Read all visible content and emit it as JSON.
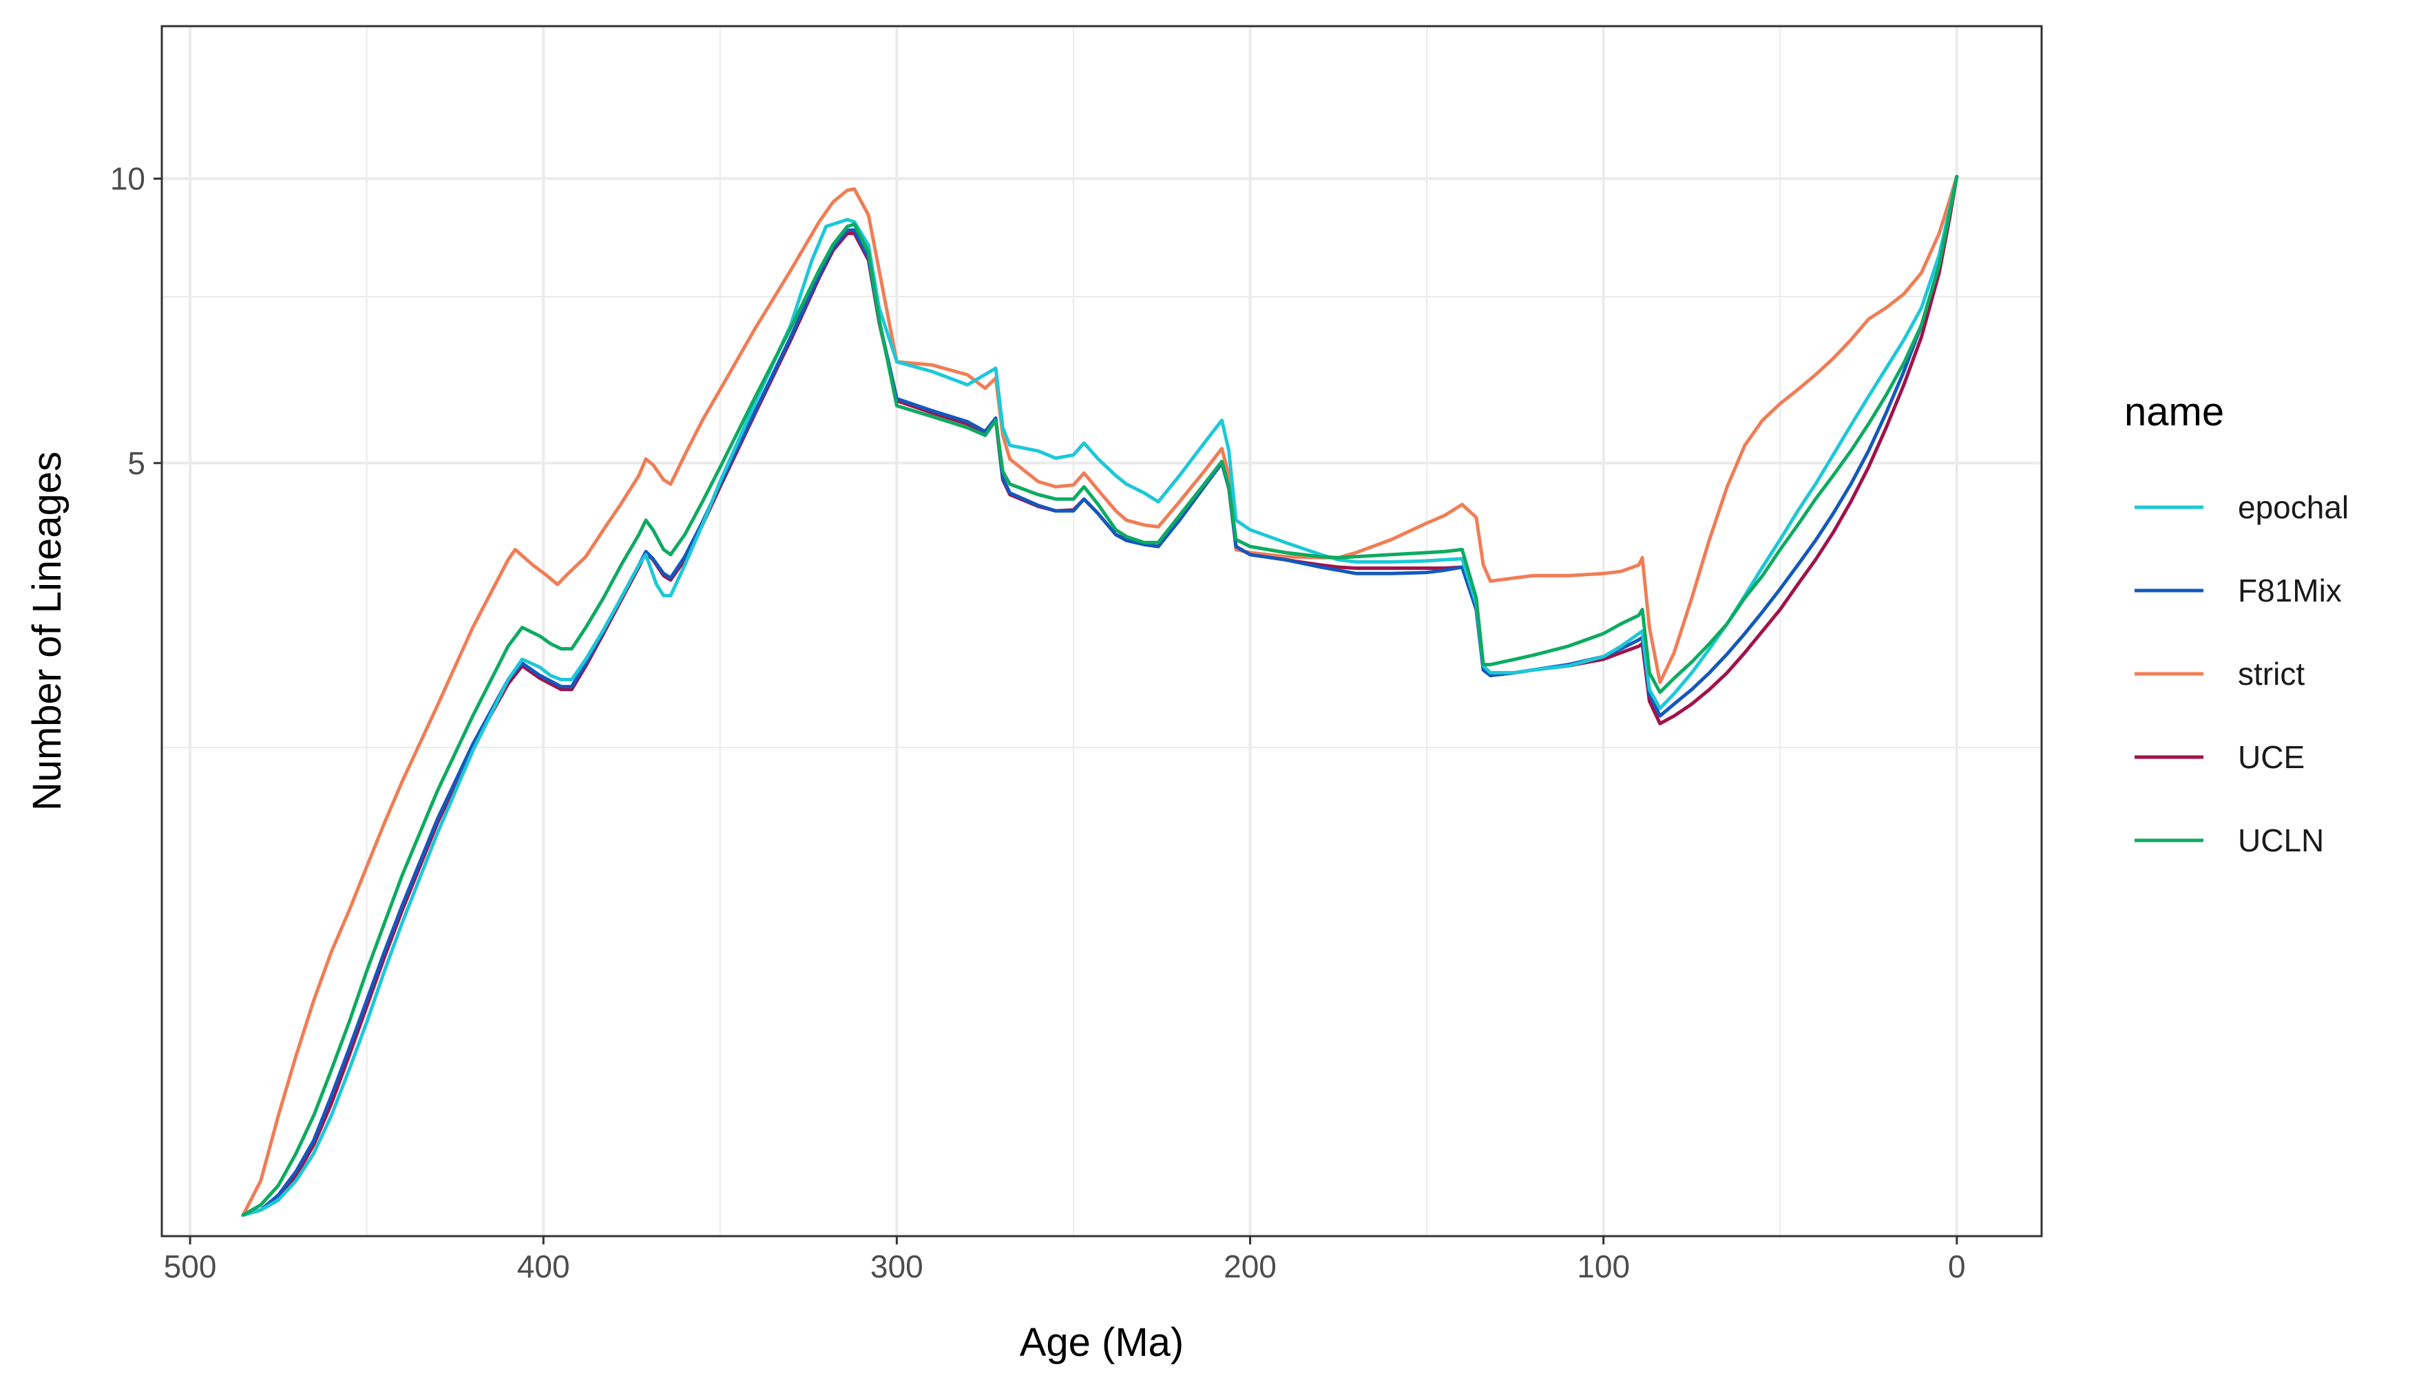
{
  "chart_data": {
    "type": "line",
    "title": "",
    "xlabel": "Age (Ma)",
    "ylabel": "Number of Lineages",
    "x_reversed": true,
    "xlim": [
      508,
      -24
    ],
    "x_ticks": [
      500,
      400,
      300,
      200,
      100,
      0
    ],
    "x_tick_labels": [
      "500",
      "400",
      "300",
      "200",
      "100",
      "0"
    ],
    "x_minor_ticks": [
      450,
      350,
      250,
      150,
      50
    ],
    "y_scale": "log",
    "ylim": [
      0.76,
      14.5
    ],
    "y_ticks": [
      5,
      10
    ],
    "y_tick_labels": [
      "5",
      "10"
    ],
    "y_minor_ticks": [
      2.5,
      7.5
    ],
    "grid": true,
    "legend": {
      "title": "name",
      "position": "right",
      "entries": [
        "epochal",
        "F81Mix",
        "strict",
        "UCE",
        "UCLN"
      ]
    },
    "series": [
      {
        "name": "strict",
        "color": "#F07D55",
        "x": [
          485,
          480,
          475,
          470,
          465,
          460,
          455,
          450,
          445,
          440,
          430,
          420,
          410,
          408,
          403,
          399,
          396,
          393,
          388,
          383,
          378,
          373,
          371,
          369,
          366,
          364,
          360,
          355,
          350,
          340,
          330,
          322,
          318,
          314,
          312,
          308,
          305,
          300,
          290,
          280,
          275,
          272,
          270,
          268,
          260,
          255,
          250,
          247,
          243,
          238,
          235,
          230,
          226,
          220,
          213,
          208,
          206,
          204,
          200,
          190,
          180,
          175,
          170,
          160,
          150,
          145,
          140,
          136,
          134,
          132,
          125,
          120,
          110,
          100,
          95,
          90,
          89,
          87,
          84,
          80,
          75,
          70,
          65,
          60,
          55,
          50,
          45,
          40,
          35,
          30,
          25,
          20,
          15,
          10,
          5,
          2,
          0
        ],
        "y": [
          0.8,
          0.87,
          1.02,
          1.18,
          1.35,
          1.52,
          1.68,
          1.87,
          2.08,
          2.3,
          2.77,
          3.35,
          3.95,
          4.05,
          3.9,
          3.8,
          3.72,
          3.82,
          3.98,
          4.25,
          4.53,
          4.85,
          5.05,
          4.98,
          4.8,
          4.75,
          5.1,
          5.55,
          5.98,
          6.95,
          8.0,
          9.0,
          9.45,
          9.72,
          9.75,
          9.15,
          8.0,
          6.4,
          6.35,
          6.2,
          6.0,
          6.15,
          5.35,
          5.05,
          4.78,
          4.72,
          4.74,
          4.88,
          4.68,
          4.45,
          4.35,
          4.3,
          4.28,
          4.55,
          4.9,
          5.18,
          4.85,
          4.05,
          4.02,
          3.98,
          3.97,
          3.97,
          4.02,
          4.15,
          4.32,
          4.4,
          4.52,
          4.38,
          3.9,
          3.75,
          3.78,
          3.8,
          3.8,
          3.82,
          3.84,
          3.9,
          3.97,
          3.35,
          2.93,
          3.15,
          3.6,
          4.15,
          4.72,
          5.22,
          5.55,
          5.78,
          5.98,
          6.2,
          6.45,
          6.75,
          7.1,
          7.3,
          7.55,
          7.95,
          8.75,
          9.5,
          10.05
        ]
      },
      {
        "name": "UCE",
        "color": "#A1124A",
        "x": [
          485,
          480,
          475,
          470,
          465,
          460,
          455,
          450,
          445,
          440,
          430,
          420,
          410,
          406,
          401,
          398,
          395,
          392,
          388,
          383,
          378,
          373,
          371,
          369,
          366,
          364,
          360,
          355,
          350,
          340,
          330,
          322,
          318,
          314,
          312,
          308,
          305,
          300,
          290,
          280,
          275,
          272,
          270,
          268,
          260,
          255,
          250,
          247,
          243,
          238,
          235,
          230,
          226,
          220,
          213,
          208,
          206,
          204,
          200,
          190,
          180,
          175,
          170,
          160,
          150,
          145,
          140,
          136,
          134,
          132,
          125,
          120,
          110,
          100,
          95,
          90,
          89,
          87,
          84,
          80,
          75,
          70,
          65,
          60,
          55,
          50,
          45,
          40,
          35,
          30,
          25,
          20,
          15,
          10,
          5,
          2,
          0
        ],
        "y": [
          0.8,
          0.81,
          0.83,
          0.88,
          0.95,
          1.05,
          1.18,
          1.33,
          1.5,
          1.68,
          2.08,
          2.5,
          2.92,
          3.05,
          2.96,
          2.92,
          2.88,
          2.88,
          3.05,
          3.3,
          3.58,
          3.88,
          4.02,
          3.95,
          3.8,
          3.76,
          3.95,
          4.3,
          4.72,
          5.65,
          6.75,
          7.85,
          8.4,
          8.75,
          8.75,
          8.2,
          7.05,
          5.82,
          5.65,
          5.5,
          5.38,
          5.55,
          4.8,
          4.63,
          4.5,
          4.45,
          4.46,
          4.58,
          4.42,
          4.2,
          4.15,
          4.1,
          4.08,
          4.35,
          4.72,
          5.0,
          4.7,
          4.08,
          4.0,
          3.95,
          3.9,
          3.88,
          3.87,
          3.87,
          3.87,
          3.87,
          3.88,
          3.5,
          3.02,
          2.98,
          3.0,
          3.02,
          3.05,
          3.1,
          3.15,
          3.2,
          3.22,
          2.8,
          2.65,
          2.7,
          2.78,
          2.88,
          3.0,
          3.15,
          3.32,
          3.5,
          3.72,
          3.95,
          4.22,
          4.55,
          4.95,
          5.45,
          6.05,
          6.8,
          7.95,
          9.1,
          10.05
        ]
      },
      {
        "name": "F81Mix",
        "color": "#1358BE",
        "x": [
          485,
          480,
          475,
          470,
          465,
          460,
          455,
          450,
          445,
          440,
          430,
          420,
          410,
          406,
          401,
          398,
          395,
          392,
          388,
          383,
          378,
          373,
          371,
          369,
          366,
          364,
          360,
          355,
          350,
          340,
          330,
          322,
          318,
          314,
          312,
          308,
          305,
          300,
          290,
          280,
          275,
          272,
          270,
          268,
          260,
          255,
          250,
          247,
          243,
          238,
          235,
          230,
          226,
          220,
          213,
          208,
          206,
          204,
          200,
          190,
          180,
          175,
          170,
          160,
          150,
          145,
          140,
          136,
          134,
          132,
          125,
          120,
          110,
          100,
          95,
          90,
          89,
          87,
          84,
          80,
          75,
          70,
          65,
          60,
          55,
          50,
          45,
          40,
          35,
          30,
          25,
          20,
          15,
          10,
          5,
          2,
          0
        ],
        "y": [
          0.8,
          0.81,
          0.84,
          0.89,
          0.96,
          1.07,
          1.2,
          1.35,
          1.52,
          1.7,
          2.1,
          2.52,
          2.95,
          3.07,
          2.98,
          2.94,
          2.9,
          2.9,
          3.07,
          3.32,
          3.6,
          3.9,
          4.03,
          3.96,
          3.82,
          3.78,
          3.98,
          4.33,
          4.75,
          5.68,
          6.8,
          7.9,
          8.45,
          8.82,
          8.82,
          8.25,
          7.08,
          5.85,
          5.68,
          5.53,
          5.4,
          5.58,
          4.82,
          4.65,
          4.51,
          4.45,
          4.45,
          4.58,
          4.42,
          4.2,
          4.14,
          4.1,
          4.08,
          4.35,
          4.72,
          5.0,
          4.7,
          4.08,
          4.0,
          3.95,
          3.88,
          3.85,
          3.82,
          3.82,
          3.83,
          3.85,
          3.88,
          3.5,
          3.02,
          2.98,
          3.0,
          3.02,
          3.06,
          3.12,
          3.18,
          3.25,
          3.27,
          2.85,
          2.7,
          2.78,
          2.88,
          3.0,
          3.14,
          3.3,
          3.48,
          3.68,
          3.9,
          4.14,
          4.42,
          4.75,
          5.15,
          5.65,
          6.25,
          7.0,
          8.1,
          9.2,
          10.05
        ]
      },
      {
        "name": "epochal",
        "color": "#1CC8D8",
        "x": [
          485,
          480,
          475,
          470,
          465,
          460,
          455,
          450,
          445,
          440,
          430,
          420,
          410,
          406,
          401,
          398,
          395,
          392,
          388,
          383,
          378,
          373,
          371,
          368,
          366,
          364,
          360,
          355,
          350,
          340,
          330,
          324,
          320,
          316,
          314,
          312,
          308,
          305,
          300,
          290,
          280,
          272,
          270,
          268,
          260,
          255,
          250,
          247,
          243,
          238,
          235,
          230,
          226,
          220,
          213,
          208,
          206,
          204,
          200,
          190,
          180,
          175,
          170,
          160,
          150,
          145,
          140,
          136,
          134,
          132,
          125,
          120,
          110,
          100,
          95,
          90,
          89,
          87,
          84,
          80,
          75,
          70,
          65,
          60,
          55,
          50,
          45,
          40,
          35,
          30,
          25,
          20,
          15,
          10,
          5,
          2,
          0
        ],
        "y": [
          0.8,
          0.81,
          0.83,
          0.87,
          0.93,
          1.02,
          1.14,
          1.28,
          1.45,
          1.63,
          2.03,
          2.48,
          2.95,
          3.1,
          3.04,
          2.98,
          2.95,
          2.95,
          3.1,
          3.33,
          3.6,
          3.9,
          4.0,
          3.72,
          3.62,
          3.62,
          3.9,
          4.3,
          4.78,
          5.8,
          7.0,
          8.2,
          8.9,
          9.0,
          9.05,
          9.0,
          8.5,
          7.3,
          6.4,
          6.25,
          6.05,
          6.3,
          5.45,
          5.22,
          5.15,
          5.06,
          5.1,
          5.25,
          5.05,
          4.85,
          4.75,
          4.65,
          4.55,
          4.85,
          5.25,
          5.55,
          5.15,
          4.35,
          4.25,
          4.12,
          4.0,
          3.95,
          3.93,
          3.93,
          3.94,
          3.95,
          3.96,
          3.55,
          3.05,
          3.0,
          3.0,
          3.02,
          3.05,
          3.12,
          3.2,
          3.3,
          3.32,
          2.88,
          2.75,
          2.85,
          3.0,
          3.18,
          3.38,
          3.62,
          3.88,
          4.15,
          4.45,
          4.75,
          5.1,
          5.48,
          5.88,
          6.3,
          6.75,
          7.3,
          8.3,
          9.3,
          10.05
        ]
      },
      {
        "name": "UCLN",
        "color": "#0DAB61",
        "x": [
          485,
          480,
          475,
          470,
          465,
          460,
          455,
          450,
          445,
          440,
          430,
          420,
          410,
          406,
          401,
          398,
          395,
          392,
          388,
          383,
          378,
          373,
          371,
          369,
          366,
          364,
          360,
          355,
          350,
          340,
          330,
          322,
          318,
          314,
          312,
          308,
          305,
          300,
          290,
          280,
          275,
          272,
          270,
          268,
          260,
          255,
          250,
          247,
          243,
          238,
          235,
          230,
          226,
          220,
          213,
          208,
          206,
          204,
          200,
          190,
          180,
          175,
          170,
          160,
          150,
          145,
          140,
          136,
          134,
          132,
          125,
          120,
          110,
          100,
          95,
          90,
          89,
          87,
          84,
          80,
          75,
          70,
          65,
          60,
          55,
          50,
          45,
          40,
          35,
          30,
          25,
          20,
          15,
          10,
          5,
          2,
          0
        ],
        "y": [
          0.8,
          0.82,
          0.86,
          0.93,
          1.02,
          1.14,
          1.28,
          1.45,
          1.63,
          1.83,
          2.25,
          2.7,
          3.2,
          3.35,
          3.28,
          3.22,
          3.18,
          3.18,
          3.35,
          3.6,
          3.9,
          4.2,
          4.35,
          4.25,
          4.05,
          4.0,
          4.2,
          4.55,
          4.95,
          5.88,
          6.95,
          8.0,
          8.52,
          8.9,
          8.95,
          8.35,
          7.1,
          5.75,
          5.6,
          5.45,
          5.35,
          5.55,
          4.9,
          4.75,
          4.63,
          4.58,
          4.58,
          4.72,
          4.52,
          4.25,
          4.18,
          4.12,
          4.12,
          4.4,
          4.75,
          5.02,
          4.72,
          4.15,
          4.08,
          4.02,
          3.98,
          3.97,
          3.98,
          4.0,
          4.02,
          4.03,
          4.05,
          3.6,
          3.06,
          3.06,
          3.1,
          3.13,
          3.2,
          3.3,
          3.38,
          3.45,
          3.5,
          3.0,
          2.86,
          2.96,
          3.08,
          3.22,
          3.38,
          3.6,
          3.8,
          4.05,
          4.3,
          4.58,
          4.85,
          5.15,
          5.5,
          5.9,
          6.38,
          7.0,
          8.1,
          9.2,
          10.05
        ]
      }
    ]
  }
}
